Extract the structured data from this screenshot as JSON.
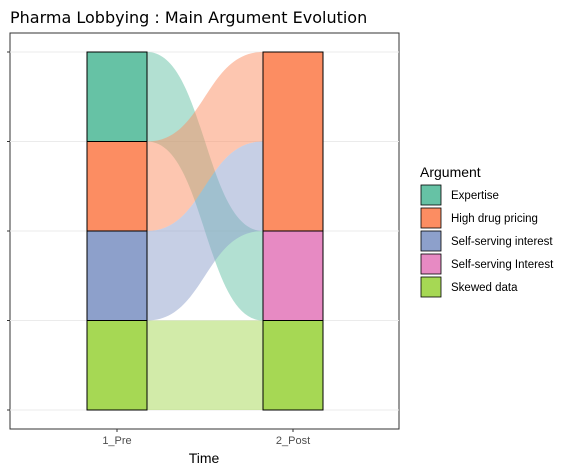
{
  "chart_data": {
    "type": "alluvial",
    "title": "Pharma Lobbying : Main Argument Evolution",
    "xlabel": "Time",
    "ylabel": "",
    "categories": [
      "1_Pre",
      "2_Post"
    ],
    "ylim": [
      0,
      4
    ],
    "y_ticks": [
      0,
      1,
      2,
      3,
      4
    ],
    "grid": true,
    "legend": {
      "title": "Argument",
      "position": "right",
      "items": [
        {
          "label": "Expertise",
          "color": "#66c2a5"
        },
        {
          "label": "High drug pricing",
          "color": "#fc8d62"
        },
        {
          "label": "Self-serving interest",
          "color": "#8da0cb"
        },
        {
          "label": "Self-serving Interest",
          "color": "#e78ac3"
        },
        {
          "label": "Skewed data",
          "color": "#a6d854"
        }
      ]
    },
    "strata": [
      {
        "x": "1_Pre",
        "segments": [
          {
            "label": "Expertise",
            "value": 1,
            "color": "#66c2a5"
          },
          {
            "label": "High drug pricing",
            "value": 1,
            "color": "#fc8d62"
          },
          {
            "label": "Self-serving interest",
            "value": 1,
            "color": "#8da0cb"
          },
          {
            "label": "Skewed data",
            "value": 1,
            "color": "#a6d854"
          }
        ]
      },
      {
        "x": "2_Post",
        "segments": [
          {
            "label": "High drug pricing",
            "value": 2,
            "color": "#fc8d62"
          },
          {
            "label": "Self-serving Interest",
            "value": 1,
            "color": "#e78ac3"
          },
          {
            "label": "Skewed data",
            "value": 1,
            "color": "#a6d854"
          }
        ]
      }
    ],
    "flows": [
      {
        "from": "Expertise",
        "to": "Self-serving Interest",
        "value": 1,
        "color": "#66c2a5"
      },
      {
        "from": "High drug pricing",
        "to": "High drug pricing",
        "value": 1,
        "color": "#fc8d62"
      },
      {
        "from": "Self-serving interest",
        "to": "High drug pricing",
        "value": 1,
        "color": "#8da0cb"
      },
      {
        "from": "Skewed data",
        "to": "Skewed data",
        "value": 1,
        "color": "#a6d854"
      }
    ]
  }
}
